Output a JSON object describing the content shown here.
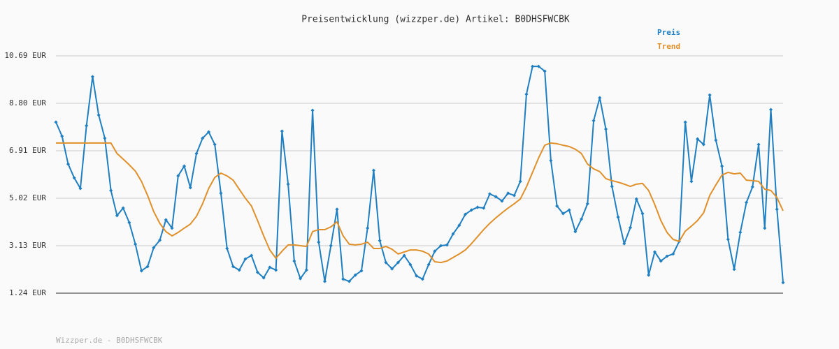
{
  "chart_data": {
    "type": "line",
    "title": "Preisentwicklung (wizzper.de) Artikel: B0DHSFWCBK",
    "footer": "Wizzper.de - B0DHSFWCBK",
    "ylim": [
      1.24,
      10.69
    ],
    "yticks": [
      {
        "value": 1.24,
        "label": "1.24 EUR"
      },
      {
        "value": 3.13,
        "label": "3.13 EUR"
      },
      {
        "value": 5.02,
        "label": "5.02 EUR"
      },
      {
        "value": 6.91,
        "label": "6.91 EUR"
      },
      {
        "value": 8.8,
        "label": "8.80 EUR"
      },
      {
        "value": 10.69,
        "label": "10.69 EUR"
      }
    ],
    "grid": true,
    "legend": "top-right",
    "series": [
      {
        "name": "Preis",
        "color": "#1f7fc0",
        "markers": true,
        "values": [
          8.05,
          7.49,
          6.38,
          5.83,
          5.41,
          7.91,
          9.86,
          8.33,
          7.41,
          5.33,
          4.33,
          4.63,
          4.05,
          3.19,
          2.13,
          2.3,
          3.05,
          3.35,
          4.16,
          3.83,
          5.91,
          6.3,
          5.44,
          6.8,
          7.41,
          7.66,
          7.16,
          5.22,
          3.02,
          2.3,
          2.16,
          2.6,
          2.74,
          2.07,
          1.85,
          2.27,
          2.16,
          7.69,
          5.58,
          2.52,
          1.82,
          2.16,
          8.52,
          3.27,
          1.71,
          3.13,
          4.58,
          1.8,
          1.71,
          1.96,
          2.13,
          3.83,
          6.13,
          3.33,
          2.46,
          2.21,
          2.46,
          2.74,
          2.38,
          1.93,
          1.8,
          2.38,
          2.91,
          3.13,
          3.16,
          3.6,
          3.94,
          4.38,
          4.55,
          4.66,
          4.63,
          5.19,
          5.08,
          4.91,
          5.22,
          5.13,
          5.69,
          9.16,
          10.27,
          10.27,
          10.08,
          6.52,
          4.71,
          4.41,
          4.55,
          3.69,
          4.19,
          4.8,
          8.11,
          9.02,
          7.77,
          5.49,
          4.27,
          3.21,
          3.85,
          4.99,
          4.41,
          1.96,
          2.88,
          2.52,
          2.71,
          2.8,
          3.3,
          8.05,
          5.69,
          7.38,
          7.16,
          9.13,
          7.33,
          6.3,
          3.38,
          2.19,
          3.66,
          4.85,
          5.47,
          7.16,
          3.83,
          8.55,
          4.58,
          1.66
        ]
      },
      {
        "name": "Trend",
        "color": "#e0902a",
        "markers": false,
        "values": [
          7.22,
          7.22,
          7.22,
          7.22,
          7.22,
          7.22,
          7.22,
          7.22,
          7.22,
          7.22,
          6.8,
          6.58,
          6.35,
          6.1,
          5.69,
          5.13,
          4.49,
          4.02,
          3.69,
          3.52,
          3.66,
          3.83,
          3.99,
          4.3,
          4.8,
          5.41,
          5.85,
          6.02,
          5.91,
          5.74,
          5.38,
          5.02,
          4.71,
          4.13,
          3.52,
          2.96,
          2.63,
          2.91,
          3.16,
          3.16,
          3.13,
          3.1,
          3.69,
          3.77,
          3.77,
          3.88,
          4.08,
          3.52,
          3.19,
          3.16,
          3.19,
          3.27,
          3.02,
          3.02,
          3.1,
          2.99,
          2.8,
          2.88,
          2.96,
          2.96,
          2.91,
          2.8,
          2.49,
          2.46,
          2.52,
          2.66,
          2.8,
          2.96,
          3.21,
          3.49,
          3.77,
          4.02,
          4.24,
          4.44,
          4.63,
          4.8,
          4.99,
          5.47,
          6.05,
          6.63,
          7.13,
          7.22,
          7.19,
          7.13,
          7.08,
          6.97,
          6.8,
          6.38,
          6.19,
          6.08,
          5.8,
          5.72,
          5.66,
          5.58,
          5.49,
          5.58,
          5.61,
          5.33,
          4.77,
          4.13,
          3.66,
          3.38,
          3.3,
          3.71,
          3.91,
          4.13,
          4.44,
          5.13,
          5.55,
          5.94,
          6.05,
          5.99,
          6.02,
          5.74,
          5.72,
          5.69,
          5.38,
          5.33,
          5.05,
          4.52
        ]
      }
    ]
  }
}
